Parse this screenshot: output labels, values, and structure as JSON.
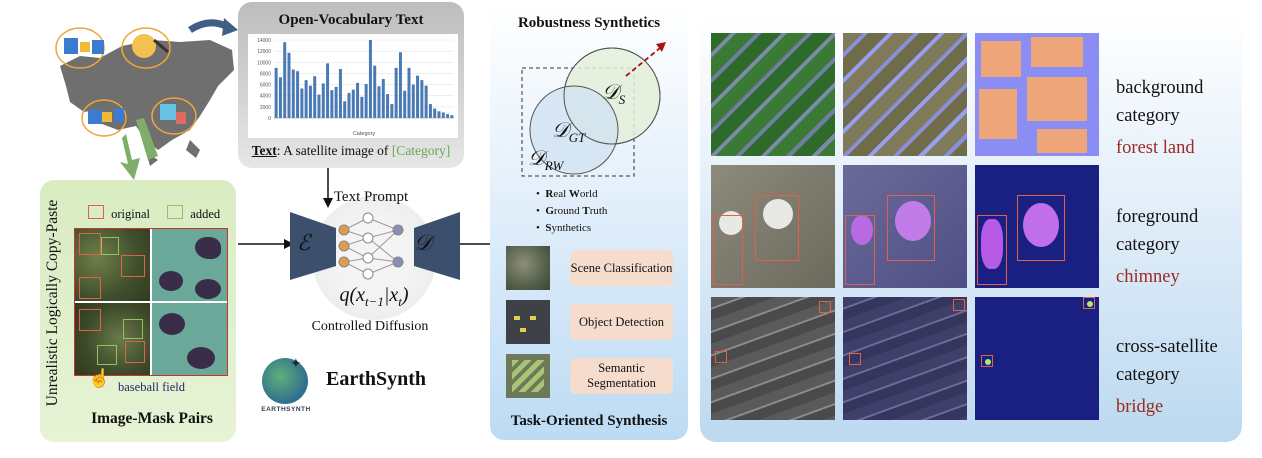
{
  "open_vocab": {
    "title": "Open-Vocabulary Text",
    "caption_bold": "Text",
    "caption_rest": ": A satellite image of ",
    "caption_placeholder": "[Category]",
    "xlabel": "Category"
  },
  "chart_data": {
    "type": "bar",
    "title": "",
    "xlabel": "Category",
    "ylabel": "",
    "ylim": [
      0,
      14000
    ],
    "yticks": [
      "14000",
      "12000",
      "10000",
      "8000",
      "6000",
      "4000",
      "2000",
      "0"
    ],
    "values": [
      9000,
      7300,
      13600,
      11700,
      8700,
      8400,
      5300,
      6800,
      5800,
      7500,
      4200,
      6200,
      9800,
      5000,
      5600,
      8800,
      3000,
      4500,
      5100,
      6300,
      3800,
      6100,
      14000,
      9400,
      5700,
      7000,
      4300,
      2500,
      9000,
      11800,
      4900,
      9000,
      6000,
      7600,
      6800,
      5800,
      2500,
      1700,
      1200,
      1000,
      700,
      500
    ]
  },
  "image_mask": {
    "copy_paste": "Copy-Paste",
    "logically": "Logically",
    "unrealistic": "Unrealistic",
    "legend_original": "original",
    "legend_added": "added",
    "field_label": "baseball field",
    "title": "Image-Mask Pairs"
  },
  "diffusion": {
    "text_prompt": "Text Prompt",
    "encoder": "ℰ",
    "decoder": "𝒟",
    "formula": "q(x",
    "formula_sub1": "t−1",
    "formula_mid": "|x",
    "formula_sub2": "t",
    "formula_end": ")",
    "caption": "Controlled Diffusion"
  },
  "brand": {
    "name": "EarthSynth",
    "logo_text": "EARTHSYNTH"
  },
  "robustness": {
    "title": "Robustness Synthetics",
    "ds": "𝒟",
    "ds_sub": "S",
    "dgt": "𝒟",
    "dgt_sub": "GT",
    "drw": "𝒟",
    "drw_sub": "RW",
    "bullets": [
      {
        "b1": "R",
        "t1": "eal ",
        "b2": "W",
        "t2": "orld"
      },
      {
        "b1": "G",
        "t1": "round ",
        "b2": "T",
        "t2": "ruth"
      },
      {
        "b1": "S",
        "t1": "ynthetics",
        "b2": "",
        "t2": ""
      }
    ]
  },
  "tasks": {
    "items": [
      "Scene Classification",
      "Object Detection",
      "Semantic Segmentation"
    ],
    "title": "Task-Oriented Synthesis"
  },
  "rows": [
    {
      "line1": "background",
      "line2": "category",
      "cat": "forest land"
    },
    {
      "line1": "foreground",
      "line2": "category",
      "cat": "chimney"
    },
    {
      "line1": "cross-satellite",
      "line2": "category",
      "cat": "bridge"
    }
  ],
  "colors": {
    "bar": "#4a7ab5",
    "category_red": "#9b2a1f",
    "legend_original": "#e0614a",
    "legend_added": "#8fc45f",
    "placeholder_green": "#6aa84f",
    "task_bg": "#f6dccd"
  }
}
